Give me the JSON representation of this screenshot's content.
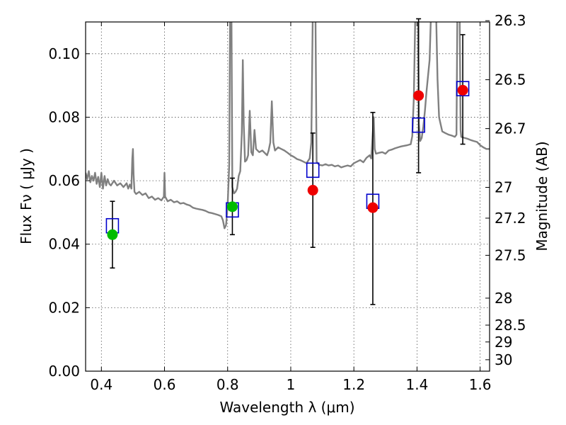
{
  "chart_data": {
    "type": "scatter",
    "title": "",
    "xlabel": "Wavelength  λ (μm)",
    "ylabel": "Flux  Fν  ( μJy )",
    "ylabel_right": "Magnitude (AB)",
    "xlim": [
      0.35,
      1.63
    ],
    "ylim": [
      0.0,
      0.11
    ],
    "grid": true,
    "x_ticks": [
      0.4,
      0.6,
      0.8,
      1.0,
      1.2,
      1.4,
      1.6
    ],
    "x_tick_labels": [
      "0.4",
      "0.6",
      "0.8",
      "1",
      "1.2",
      "1.4",
      "1.6"
    ],
    "y_ticks": [
      0.0,
      0.02,
      0.04,
      0.06,
      0.08,
      0.1
    ],
    "y_tick_labels": [
      "0.00",
      "0.02",
      "0.04",
      "0.06",
      "0.08",
      "0.10"
    ],
    "right_ticks": [
      {
        "label": "26.3",
        "flux": 0.1104
      },
      {
        "label": "26.5",
        "flux": 0.0918
      },
      {
        "label": "26.7",
        "flux": 0.0764
      },
      {
        "label": "27",
        "flux": 0.0579
      },
      {
        "label": "27.2",
        "flux": 0.0482
      },
      {
        "label": "27.5",
        "flux": 0.0365
      },
      {
        "label": "28",
        "flux": 0.023
      },
      {
        "label": "28.5",
        "flux": 0.0145
      },
      {
        "label": "29",
        "flux": 0.0092
      },
      {
        "label": "30",
        "flux": 0.0036
      }
    ],
    "colors": {
      "model": "#808080",
      "box": "#0000cc",
      "green": "#00bb00",
      "red": "#ee0000",
      "errorbar": "#000000",
      "grid": "#555555"
    },
    "series": [
      {
        "kind": "model_spectrum",
        "points": [
          [
            0.35,
            0.0625
          ],
          [
            0.355,
            0.0605
          ],
          [
            0.36,
            0.063
          ],
          [
            0.365,
            0.0595
          ],
          [
            0.37,
            0.0615
          ],
          [
            0.375,
            0.06
          ],
          [
            0.38,
            0.0625
          ],
          [
            0.385,
            0.059
          ],
          [
            0.39,
            0.0612
          ],
          [
            0.395,
            0.058
          ],
          [
            0.4,
            0.0625
          ],
          [
            0.405,
            0.0575
          ],
          [
            0.41,
            0.0615
          ],
          [
            0.415,
            0.0585
          ],
          [
            0.42,
            0.0605
          ],
          [
            0.425,
            0.059
          ],
          [
            0.43,
            0.0585
          ],
          [
            0.44,
            0.06
          ],
          [
            0.45,
            0.0585
          ],
          [
            0.46,
            0.0592
          ],
          [
            0.47,
            0.058
          ],
          [
            0.48,
            0.0592
          ],
          [
            0.485,
            0.0575
          ],
          [
            0.49,
            0.0588
          ],
          [
            0.495,
            0.0575
          ],
          [
            0.498,
            0.067
          ],
          [
            0.5,
            0.07
          ],
          [
            0.502,
            0.062
          ],
          [
            0.505,
            0.0565
          ],
          [
            0.51,
            0.0558
          ],
          [
            0.52,
            0.0565
          ],
          [
            0.53,
            0.0555
          ],
          [
            0.54,
            0.056
          ],
          [
            0.55,
            0.0545
          ],
          [
            0.56,
            0.055
          ],
          [
            0.57,
            0.054
          ],
          [
            0.58,
            0.0545
          ],
          [
            0.59,
            0.0538
          ],
          [
            0.598,
            0.055
          ],
          [
            0.6,
            0.0625
          ],
          [
            0.602,
            0.055
          ],
          [
            0.61,
            0.0535
          ],
          [
            0.62,
            0.054
          ],
          [
            0.63,
            0.0532
          ],
          [
            0.64,
            0.0535
          ],
          [
            0.65,
            0.0528
          ],
          [
            0.66,
            0.053
          ],
          [
            0.67,
            0.0525
          ],
          [
            0.68,
            0.0522
          ],
          [
            0.69,
            0.0515
          ],
          [
            0.7,
            0.0512
          ],
          [
            0.71,
            0.051
          ],
          [
            0.72,
            0.0508
          ],
          [
            0.73,
            0.0505
          ],
          [
            0.74,
            0.05
          ],
          [
            0.75,
            0.0498
          ],
          [
            0.76,
            0.0495
          ],
          [
            0.77,
            0.0492
          ],
          [
            0.78,
            0.0488
          ],
          [
            0.785,
            0.0475
          ],
          [
            0.79,
            0.045
          ],
          [
            0.795,
            0.046
          ],
          [
            0.8,
            0.052
          ],
          [
            0.805,
            0.065
          ],
          [
            0.808,
            0.115
          ],
          [
            0.812,
            0.115
          ],
          [
            0.815,
            0.058
          ],
          [
            0.82,
            0.056
          ],
          [
            0.825,
            0.0565
          ],
          [
            0.83,
            0.0575
          ],
          [
            0.835,
            0.0615
          ],
          [
            0.84,
            0.063
          ],
          [
            0.845,
            0.075
          ],
          [
            0.848,
            0.098
          ],
          [
            0.851,
            0.078
          ],
          [
            0.855,
            0.066
          ],
          [
            0.86,
            0.0665
          ],
          [
            0.865,
            0.068
          ],
          [
            0.87,
            0.082
          ],
          [
            0.875,
            0.069
          ],
          [
            0.88,
            0.068
          ],
          [
            0.885,
            0.076
          ],
          [
            0.89,
            0.07
          ],
          [
            0.9,
            0.069
          ],
          [
            0.91,
            0.0695
          ],
          [
            0.92,
            0.0685
          ],
          [
            0.925,
            0.068
          ],
          [
            0.93,
            0.0695
          ],
          [
            0.935,
            0.072
          ],
          [
            0.94,
            0.085
          ],
          [
            0.945,
            0.072
          ],
          [
            0.95,
            0.0695
          ],
          [
            0.96,
            0.0705
          ],
          [
            0.97,
            0.07
          ],
          [
            0.98,
            0.0695
          ],
          [
            0.99,
            0.0688
          ],
          [
            1.0,
            0.068
          ],
          [
            1.01,
            0.0675
          ],
          [
            1.02,
            0.0668
          ],
          [
            1.03,
            0.0665
          ],
          [
            1.04,
            0.066
          ],
          [
            1.05,
            0.0655
          ],
          [
            1.06,
            0.067
          ],
          [
            1.065,
            0.072
          ],
          [
            1.07,
            0.115
          ],
          [
            1.078,
            0.115
          ],
          [
            1.082,
            0.066
          ],
          [
            1.09,
            0.065
          ],
          [
            1.1,
            0.0648
          ],
          [
            1.11,
            0.0652
          ],
          [
            1.12,
            0.0648
          ],
          [
            1.13,
            0.065
          ],
          [
            1.14,
            0.0645
          ],
          [
            1.15,
            0.0648
          ],
          [
            1.16,
            0.0642
          ],
          [
            1.17,
            0.0645
          ],
          [
            1.18,
            0.0648
          ],
          [
            1.19,
            0.0645
          ],
          [
            1.2,
            0.0655
          ],
          [
            1.21,
            0.066
          ],
          [
            1.22,
            0.0665
          ],
          [
            1.23,
            0.0658
          ],
          [
            1.24,
            0.0672
          ],
          [
            1.25,
            0.068
          ],
          [
            1.255,
            0.067
          ],
          [
            1.26,
            0.075
          ],
          [
            1.263,
            0.08
          ],
          [
            1.266,
            0.07
          ],
          [
            1.27,
            0.0685
          ],
          [
            1.28,
            0.0688
          ],
          [
            1.29,
            0.069
          ],
          [
            1.3,
            0.0685
          ],
          [
            1.31,
            0.0695
          ],
          [
            1.32,
            0.0698
          ],
          [
            1.33,
            0.0702
          ],
          [
            1.34,
            0.0705
          ],
          [
            1.35,
            0.0708
          ],
          [
            1.36,
            0.071
          ],
          [
            1.37,
            0.0712
          ],
          [
            1.38,
            0.0715
          ],
          [
            1.385,
            0.074
          ],
          [
            1.39,
            0.086
          ],
          [
            1.395,
            0.115
          ],
          [
            1.403,
            0.115
          ],
          [
            1.406,
            0.078
          ],
          [
            1.41,
            0.0725
          ],
          [
            1.415,
            0.0735
          ],
          [
            1.42,
            0.077
          ],
          [
            1.425,
            0.082
          ],
          [
            1.43,
            0.088
          ],
          [
            1.44,
            0.098
          ],
          [
            1.445,
            0.115
          ],
          [
            1.46,
            0.115
          ],
          [
            1.465,
            0.092
          ],
          [
            1.47,
            0.08
          ],
          [
            1.48,
            0.0755
          ],
          [
            1.49,
            0.075
          ],
          [
            1.5,
            0.0745
          ],
          [
            1.51,
            0.0742
          ],
          [
            1.52,
            0.0738
          ],
          [
            1.525,
            0.0745
          ],
          [
            1.528,
            0.115
          ],
          [
            1.535,
            0.115
          ],
          [
            1.538,
            0.076
          ],
          [
            1.54,
            0.0738
          ],
          [
            1.55,
            0.0735
          ],
          [
            1.56,
            0.0732
          ],
          [
            1.57,
            0.0728
          ],
          [
            1.58,
            0.0725
          ],
          [
            1.59,
            0.0722
          ],
          [
            1.6,
            0.0712
          ],
          [
            1.61,
            0.0705
          ],
          [
            1.62,
            0.07
          ],
          [
            1.63,
            0.07
          ]
        ]
      },
      {
        "kind": "model_photometry",
        "points": [
          [
            0.435,
            0.0458
          ],
          [
            0.815,
            0.0508
          ],
          [
            1.07,
            0.0633
          ],
          [
            1.26,
            0.0535
          ],
          [
            1.405,
            0.0775
          ],
          [
            1.545,
            0.089
          ]
        ]
      },
      {
        "kind": "observed_green",
        "points": [
          [
            0.435,
            0.043,
            0.0325,
            0.0535
          ],
          [
            0.815,
            0.0518,
            0.043,
            0.0608
          ]
        ]
      },
      {
        "kind": "observed_red",
        "points": [
          [
            1.07,
            0.057,
            0.039,
            0.075
          ],
          [
            1.26,
            0.0515,
            0.021,
            0.0815
          ],
          [
            1.405,
            0.0868,
            0.0625,
            0.111
          ],
          [
            1.545,
            0.0885,
            0.0715,
            0.106
          ]
        ]
      }
    ]
  }
}
